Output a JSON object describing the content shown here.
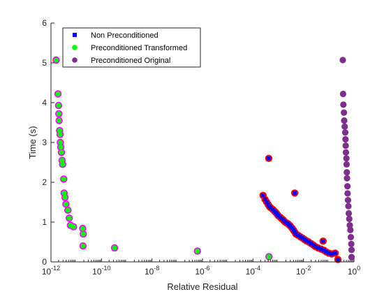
{
  "chart_data": {
    "type": "scatter",
    "title": "",
    "xlabel": "Relative Residual",
    "ylabel": "Time (s)",
    "xscale": "log",
    "xlim": [
      1e-12,
      1
    ],
    "ylim": [
      0,
      6
    ],
    "xticks": [
      {
        "value": 1e-12,
        "base": "10",
        "exp": "-12"
      },
      {
        "value": 1e-10,
        "base": "10",
        "exp": "-10"
      },
      {
        "value": 1e-08,
        "base": "10",
        "exp": "-8"
      },
      {
        "value": 1e-06,
        "base": "10",
        "exp": "-6"
      },
      {
        "value": 0.0001,
        "base": "10",
        "exp": "-4"
      },
      {
        "value": 0.01,
        "base": "10",
        "exp": "-2"
      },
      {
        "value": 1,
        "base": "10",
        "exp": "0"
      }
    ],
    "yticks": [
      {
        "value": 0,
        "label": "0"
      },
      {
        "value": 1,
        "label": "1"
      },
      {
        "value": 2,
        "label": "2"
      },
      {
        "value": 3,
        "label": "3"
      },
      {
        "value": 4,
        "label": "4"
      },
      {
        "value": 5,
        "label": "5"
      },
      {
        "value": 6,
        "label": "6"
      }
    ],
    "grid": false,
    "legend_position": "top-left",
    "series": [
      {
        "name": "Non Preconditioned",
        "marker": "square",
        "color": "#0000ff",
        "points": [
          [
            0.00025,
            1.67
          ],
          [
            0.0003,
            1.57
          ],
          [
            0.00035,
            1.5
          ],
          [
            0.0004,
            1.44
          ],
          [
            0.00045,
            1.39
          ],
          [
            0.0005,
            1.36
          ],
          [
            0.0006,
            1.32
          ],
          [
            0.0007,
            1.28
          ],
          [
            0.0008,
            1.24
          ],
          [
            0.0009,
            1.2
          ],
          [
            0.001,
            1.16
          ],
          [
            0.0012,
            1.12
          ],
          [
            0.0014,
            1.08
          ],
          [
            0.0016,
            1.05
          ],
          [
            0.0018,
            1.01
          ],
          [
            0.0021,
            0.98
          ],
          [
            0.0024,
            0.96
          ],
          [
            0.0027,
            0.93
          ],
          [
            0.003,
            0.9
          ],
          [
            0.0035,
            0.85
          ],
          [
            0.004,
            0.8
          ],
          [
            0.0045,
            0.75
          ],
          [
            0.005,
            0.7
          ],
          [
            0.006,
            0.67
          ],
          [
            0.0075,
            0.63
          ],
          [
            0.009,
            0.6
          ],
          [
            0.011,
            0.56
          ],
          [
            0.013,
            0.53
          ],
          [
            0.016,
            0.5
          ],
          [
            0.02,
            0.46
          ],
          [
            0.025,
            0.42
          ],
          [
            0.03,
            0.38
          ],
          [
            0.038,
            0.35
          ],
          [
            0.05,
            0.32
          ],
          [
            0.065,
            0.29
          ],
          [
            0.08,
            0.25
          ],
          [
            0.1,
            0.22
          ],
          [
            0.13,
            0.2
          ],
          [
            0.18,
            0.22
          ],
          [
            0.23,
            0.06
          ],
          [
            0.00042,
            2.6
          ],
          [
            0.0045,
            1.73
          ],
          [
            0.06,
            0.52
          ]
        ]
      },
      {
        "name": "Preconditioned Transformed",
        "marker": "circle",
        "color": "#00ff00",
        "points": [
          [
            1.6e-12,
            5.07
          ],
          [
            1.9e-12,
            4.22
          ],
          [
            2e-12,
            3.93
          ],
          [
            2.05e-12,
            3.72
          ],
          [
            2.1e-12,
            3.55
          ],
          [
            2.2e-12,
            3.3
          ],
          [
            2.3e-12,
            3.2
          ],
          [
            2.35e-12,
            3.0
          ],
          [
            2.45e-12,
            2.88
          ],
          [
            2.6e-12,
            2.75
          ],
          [
            2.75e-12,
            2.55
          ],
          [
            2.9e-12,
            2.45
          ],
          [
            3.2e-12,
            2.08
          ],
          [
            3.3e-12,
            1.73
          ],
          [
            3.6e-12,
            1.62
          ],
          [
            3.9e-12,
            1.45
          ],
          [
            4.7e-12,
            1.3
          ],
          [
            5.3e-12,
            1.1
          ],
          [
            5.9e-12,
            0.92
          ],
          [
            7.8e-12,
            0.88
          ],
          [
            1.8e-11,
            0.84
          ],
          [
            1.9e-11,
            0.7
          ],
          [
            1.85e-11,
            0.4
          ],
          [
            3.3e-10,
            0.35
          ],
          [
            6.3e-07,
            0.27
          ],
          [
            0.00043,
            0.13
          ]
        ]
      },
      {
        "name": "Preconditioned Original",
        "marker": "circle",
        "color": "#7e2f8e",
        "points": [
          [
            0.36,
            5.07
          ],
          [
            0.37,
            4.22
          ],
          [
            0.38,
            3.95
          ],
          [
            0.4,
            3.75
          ],
          [
            0.41,
            3.55
          ],
          [
            0.43,
            3.4
          ],
          [
            0.45,
            3.25
          ],
          [
            0.46,
            3.08
          ],
          [
            0.47,
            2.92
          ],
          [
            0.48,
            2.75
          ],
          [
            0.5,
            2.6
          ],
          [
            0.51,
            2.45
          ],
          [
            0.52,
            2.25
          ],
          [
            0.53,
            2.1
          ],
          [
            0.55,
            1.9
          ],
          [
            0.56,
            1.72
          ],
          [
            0.58,
            1.55
          ],
          [
            0.6,
            1.4
          ],
          [
            0.62,
            1.22
          ],
          [
            0.65,
            1.08
          ],
          [
            0.68,
            0.92
          ],
          [
            0.72,
            0.8
          ],
          [
            0.75,
            0.62
          ],
          [
            0.78,
            0.45
          ],
          [
            0.8,
            0.3
          ],
          [
            0.8,
            0.12
          ]
        ]
      }
    ]
  }
}
